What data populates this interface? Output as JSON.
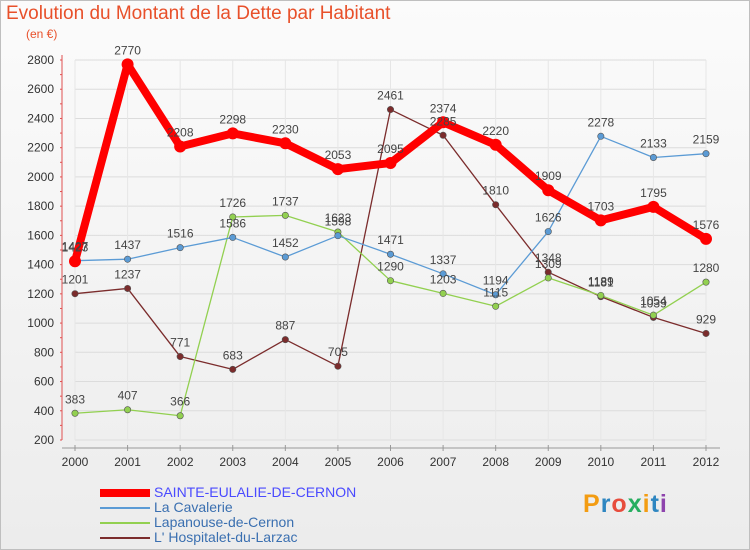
{
  "title": "Evolution du Montant de la Dette par Habitant",
  "unit_label": "(en €)",
  "logo_text": "Proxiti",
  "chart_data": {
    "type": "line",
    "title": "Evolution du Montant de la Dette par Habitant",
    "ylabel": "(en €)",
    "xlabel": "",
    "x": [
      "2000",
      "2001",
      "2002",
      "2003",
      "2004",
      "2005",
      "2006",
      "2007",
      "2008",
      "2009",
      "2010",
      "2011",
      "2012"
    ],
    "yticks": [
      "200",
      "400",
      "600",
      "800",
      "1000",
      "1200",
      "1400",
      "1600",
      "1800",
      "2000",
      "2200",
      "2400",
      "2600",
      "2800"
    ],
    "ylim": [
      200,
      2800
    ],
    "grid": true,
    "legend_position": "bottom-left",
    "series": [
      {
        "name": "SAINTE-EULALIE-DE-CERNON",
        "color": "#ff0000",
        "values": [
          1423,
          2770,
          2208,
          2298,
          2230,
          2053,
          2095,
          2374,
          2220,
          1909,
          1703,
          1795,
          1576
        ]
      },
      {
        "name": "La Cavalerie",
        "color": "#5b9bd5",
        "values": [
          1427,
          1437,
          1516,
          1586,
          1452,
          1598,
          1471,
          1337,
          1194,
          1626,
          2278,
          2133,
          2159
        ]
      },
      {
        "name": "Lapanouse-de-Cernon",
        "color": "#92d050",
        "values": [
          383,
          407,
          366,
          1726,
          1737,
          1623,
          1290,
          1203,
          1115,
          1309,
          1189,
          1054,
          1280
        ]
      },
      {
        "name": "L' Hospitalet-du-Larzac",
        "color": "#7b2c2c",
        "values": [
          1201,
          1237,
          771,
          683,
          887,
          705,
          2461,
          2285,
          1810,
          1348,
          1181,
          1039,
          929
        ]
      }
    ]
  }
}
